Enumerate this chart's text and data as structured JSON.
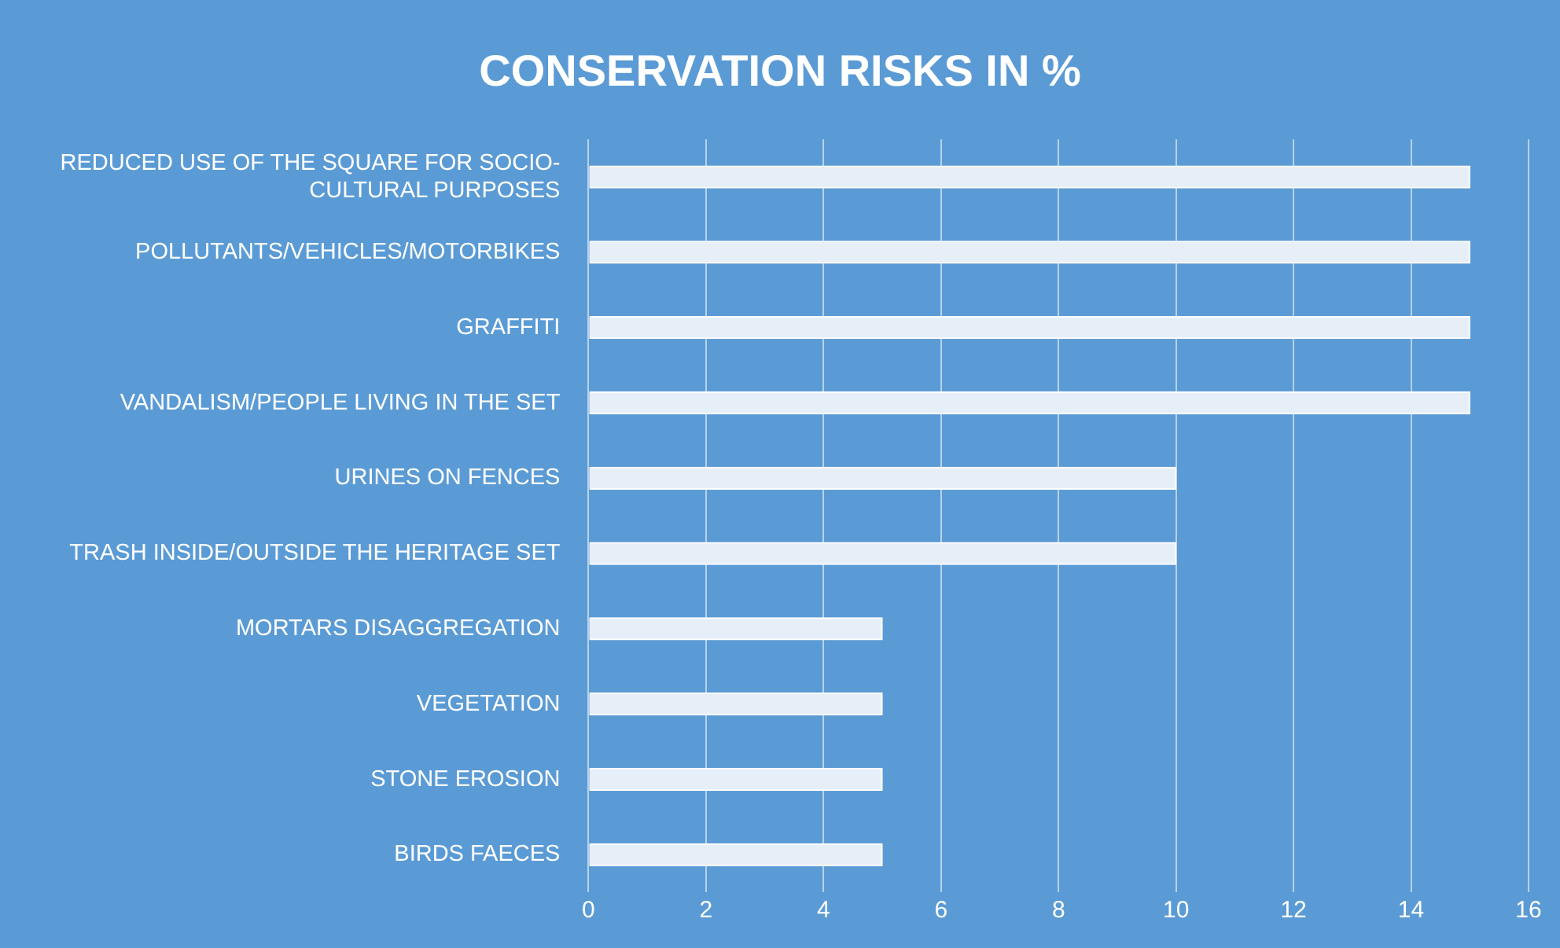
{
  "chart_data": {
    "type": "bar",
    "orientation": "horizontal",
    "title": "CONSERVATION RISKS IN %",
    "categories": [
      "REDUCED USE OF THE SQUARE FOR SOCIO-CULTURAL PURPOSES",
      "POLLUTANTS/VEHICLES/MOTORBIKES",
      "GRAFFITI",
      "VANDALISM/PEOPLE LIVING IN THE SET",
      "URINES ON FENCES",
      "TRASH INSIDE/OUTSIDE THE HERITAGE SET",
      "MORTARS DISAGGREGATION",
      "VEGETATION",
      "STONE EROSION",
      "BIRDS FAECES"
    ],
    "values": [
      15,
      15,
      15,
      15,
      10,
      10,
      5,
      5,
      5,
      5
    ],
    "color": "#e6eef8",
    "xlim": [
      0,
      16
    ],
    "xticks": [
      0,
      2,
      4,
      6,
      8,
      10,
      12,
      14,
      16
    ],
    "grid": "x",
    "legend": false
  }
}
